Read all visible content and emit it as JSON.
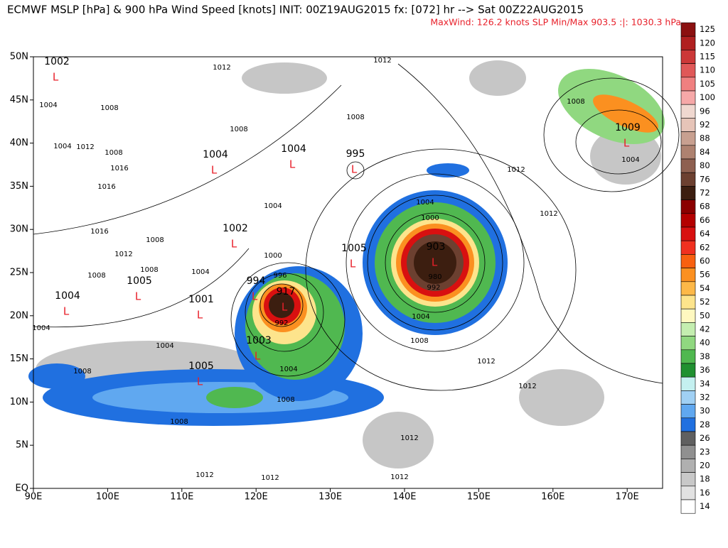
{
  "header": {
    "title": "ECMWF MSLP [hPa] & 900 hPa Wind Speed [knots] INIT: 00Z19AUG2015 fx: [072] hr --> Sat 00Z22AUG2015",
    "subtitle": "MaxWind: 126.2 knots   SLP Min/Max 903.5 :|: 1030.3 hPa"
  },
  "map": {
    "lat_labels": [
      "EQ",
      "5N",
      "10N",
      "15N",
      "20N",
      "25N",
      "30N",
      "35N",
      "40N",
      "45N",
      "50N"
    ],
    "lon_labels": [
      "90E",
      "100E",
      "110E",
      "120E",
      "130E",
      "140E",
      "150E",
      "160E",
      "170E"
    ],
    "pressure_centers": [
      {
        "value": "1002",
        "symbol": "L"
      },
      {
        "value": "1004",
        "symbol": "L"
      },
      {
        "value": "1004",
        "symbol": "L"
      },
      {
        "value": "995",
        "symbol": "L"
      },
      {
        "value": "1002",
        "symbol": "L"
      },
      {
        "value": "1005",
        "symbol": "L"
      },
      {
        "value": "903",
        "symbol": "L"
      },
      {
        "value": "1009",
        "symbol": "L"
      },
      {
        "value": "1004",
        "symbol": "L"
      },
      {
        "value": "1005",
        "symbol": "L"
      },
      {
        "value": "1001",
        "symbol": "L"
      },
      {
        "value": "994",
        "symbol": "L"
      },
      {
        "value": "917",
        "symbol": "L"
      },
      {
        "value": "1003",
        "symbol": "L"
      },
      {
        "value": "1005",
        "symbol": "L"
      }
    ],
    "isobar_labels": [
      "1012",
      "1012",
      "1004",
      "1008",
      "1008",
      "1004",
      "1012",
      "1008",
      "1016",
      "1016",
      "1008",
      "1012",
      "1008",
      "1004",
      "1004",
      "1004",
      "1000",
      "1012",
      "1016",
      "1008",
      "1012",
      "1000",
      "1008",
      "1004",
      "1008",
      "996",
      "980",
      "992",
      "1004",
      "992",
      "1004",
      "1008",
      "1012",
      "1004",
      "1008",
      "1004",
      "1008",
      "1012",
      "1008",
      "1012",
      "1012",
      "1012",
      "1012"
    ]
  },
  "legend": {
    "levels": [
      {
        "label": "125",
        "color": "#8b1010"
      },
      {
        "label": "120",
        "color": "#b02020"
      },
      {
        "label": "115",
        "color": "#cc3838"
      },
      {
        "label": "110",
        "color": "#e05858"
      },
      {
        "label": "105",
        "color": "#f08080"
      },
      {
        "label": "100",
        "color": "#f6a8a8"
      },
      {
        "label": "96",
        "color": "#f0d8d0"
      },
      {
        "label": "92",
        "color": "#e6c4b8"
      },
      {
        "label": "88",
        "color": "#c8a090"
      },
      {
        "label": "84",
        "color": "#ae8270"
      },
      {
        "label": "80",
        "color": "#8e6050"
      },
      {
        "label": "76",
        "color": "#6c4030"
      },
      {
        "label": "72",
        "color": "#3c1e10"
      },
      {
        "label": "68",
        "color": "#8b0000"
      },
      {
        "label": "66",
        "color": "#b40000"
      },
      {
        "label": "64",
        "color": "#d81010"
      },
      {
        "label": "62",
        "color": "#f03020"
      },
      {
        "label": "60",
        "color": "#f86010"
      },
      {
        "label": "56",
        "color": "#fb9020"
      },
      {
        "label": "54",
        "color": "#fdb848"
      },
      {
        "label": "52",
        "color": "#fde48c"
      },
      {
        "label": "50",
        "color": "#fff8c0"
      },
      {
        "label": "42",
        "color": "#c4eeb0"
      },
      {
        "label": "40",
        "color": "#90d880"
      },
      {
        "label": "38",
        "color": "#50b850"
      },
      {
        "label": "36",
        "color": "#209030"
      },
      {
        "label": "34",
        "color": "#c4f0f0"
      },
      {
        "label": "32",
        "color": "#a0d0f4"
      },
      {
        "label": "30",
        "color": "#60a8f0"
      },
      {
        "label": "28",
        "color": "#2070e0"
      },
      {
        "label": "26",
        "color": "#606060"
      },
      {
        "label": "23",
        "color": "#909090"
      },
      {
        "label": "20",
        "color": "#b0b0b0"
      },
      {
        "label": "18",
        "color": "#c8c8c8"
      },
      {
        "label": "16",
        "color": "#e2e2e2"
      },
      {
        "label": "14",
        "color": "#ffffff"
      }
    ]
  }
}
